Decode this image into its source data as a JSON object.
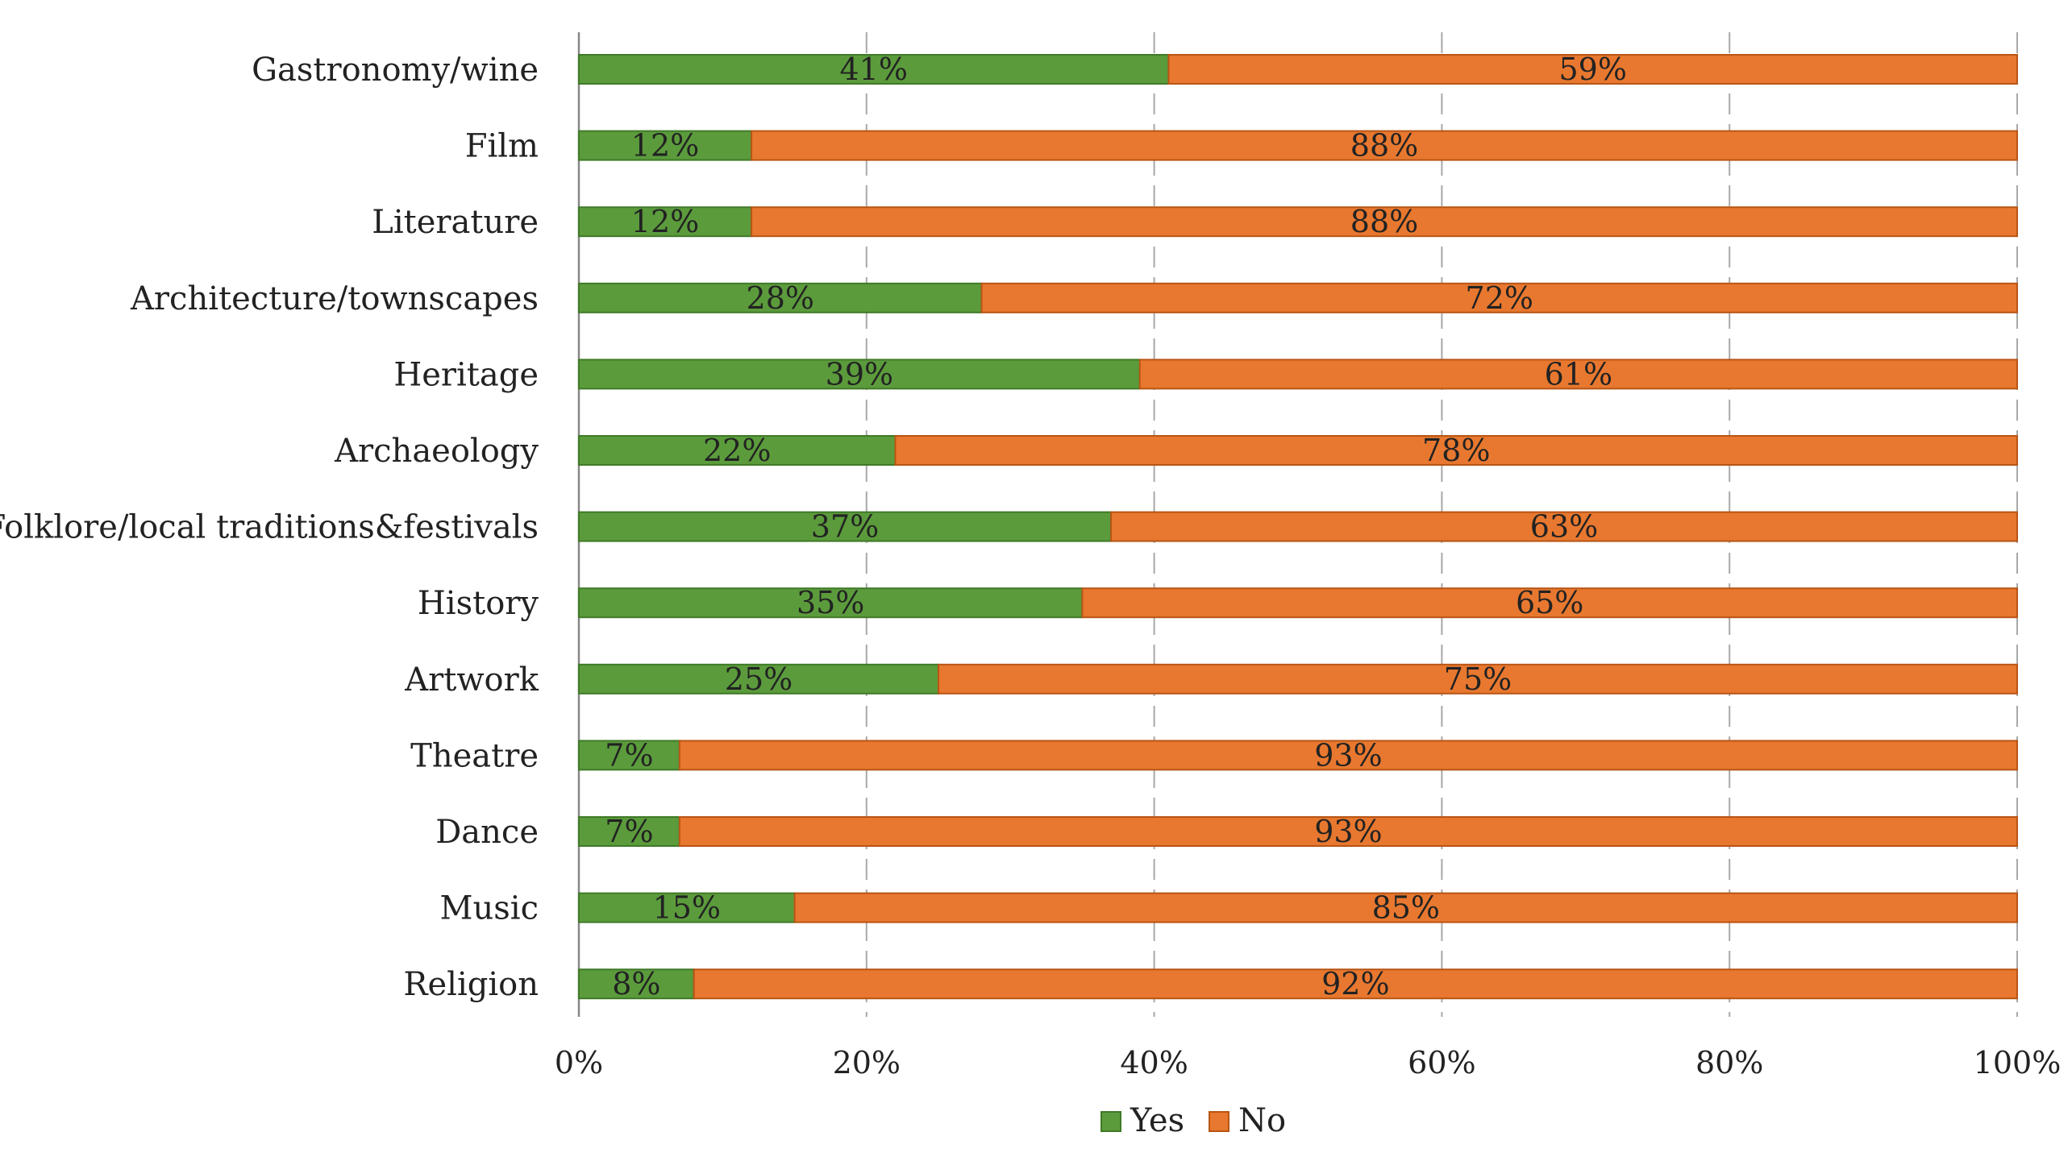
{
  "chart_data": {
    "type": "bar",
    "orientation": "horizontal",
    "stacked": true,
    "percent_stacked": true,
    "title": "",
    "xlabel": "",
    "ylabel": "",
    "categories": [
      "Gastronomy/wine",
      "Film",
      "Literature",
      "Architecture/townscapes",
      "Heritage",
      "Archaeology",
      "Folklore/local traditions&festivals",
      "History",
      "Artwork",
      "Theatre",
      "Dance",
      "Music",
      "Religion"
    ],
    "series": [
      {
        "name": "Yes",
        "color": "#5b9b3c",
        "values": [
          41,
          12,
          12,
          28,
          39,
          22,
          37,
          35,
          25,
          7,
          7,
          15,
          8
        ],
        "labels": [
          "41%",
          "12%",
          "12%",
          "28%",
          "39%",
          "22%",
          "37%",
          "35%",
          "25%",
          "7%",
          "7%",
          "15%",
          "8%"
        ]
      },
      {
        "name": "No",
        "color": "#e8782f",
        "values": [
          59,
          88,
          88,
          72,
          61,
          78,
          63,
          65,
          75,
          93,
          93,
          85,
          92
        ],
        "labels": [
          "59%",
          "88%",
          "88%",
          "72%",
          "61%",
          "78%",
          "63%",
          "65%",
          "75%",
          "93%",
          "93%",
          "85%",
          "92%"
        ]
      }
    ],
    "xlim": [
      0,
      100
    ],
    "xticks": [
      0,
      20,
      40,
      60,
      80,
      100
    ],
    "xtick_labels": [
      "0%",
      "20%",
      "40%",
      "60%",
      "80%",
      "100%"
    ],
    "grid": true,
    "legend": {
      "position": "bottom",
      "entries": [
        "Yes",
        "No"
      ]
    },
    "colors": {
      "yes_fill": "#5b9b3c",
      "yes_border": "#3f7a27",
      "no_fill": "#e8782f",
      "no_border": "#b85514",
      "grid": "#a8a8a8",
      "text": "#222222"
    }
  }
}
